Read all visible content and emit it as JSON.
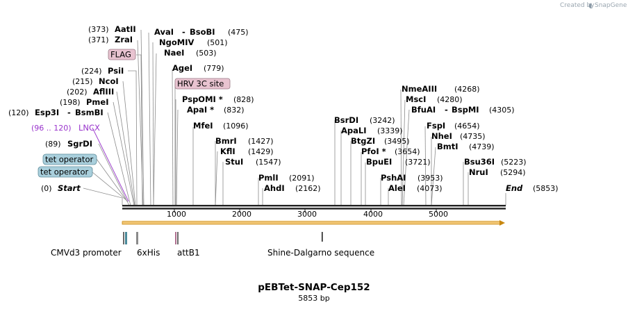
{
  "map": {
    "title": "pEBTet-SNAP-Cep152",
    "size_label": "5853 bp",
    "credit_prefix": "Created by",
    "credit_brand": "SnapGene"
  },
  "ticks": [
    {
      "label": "1000"
    },
    {
      "label": "2000"
    },
    {
      "label": "3000"
    },
    {
      "label": "4000"
    },
    {
      "label": "5000"
    }
  ],
  "terminals": {
    "start": {
      "label": "Start",
      "pos": "(0)"
    },
    "end": {
      "label": "End",
      "pos": "(5853)"
    }
  },
  "left_sites": [
    {
      "name": "AatII",
      "pos": "(373)"
    },
    {
      "name": "ZraI",
      "pos": "(371)"
    },
    {
      "name": "PsiI",
      "pos": "(224)"
    },
    {
      "name": "NcoI",
      "pos": "(215)"
    },
    {
      "name": "AflIII",
      "pos": "(202)"
    },
    {
      "name": "PmeI",
      "pos": "(198)"
    },
    {
      "name": "Esp3I",
      "name2": "BsmBI",
      "pos": "(120)"
    },
    {
      "name": "SgrDI",
      "pos": "(89)"
    }
  ],
  "right_sites": [
    {
      "name": "AvaI",
      "name2": "BsoBI",
      "pos": "(475)"
    },
    {
      "name": "NgoMIV",
      "pos": "(501)"
    },
    {
      "name": "NaeI",
      "pos": "(503)"
    },
    {
      "name": "AgeI",
      "pos": "(779)"
    },
    {
      "name": "PspOMI *",
      "pos": "(828)"
    },
    {
      "name": "ApaI *",
      "pos": "(832)"
    },
    {
      "name": "MfeI",
      "pos": "(1096)"
    },
    {
      "name": "BmrI",
      "pos": "(1427)"
    },
    {
      "name": "KflI",
      "pos": "(1429)"
    },
    {
      "name": "StuI",
      "pos": "(1547)"
    },
    {
      "name": "PmlI",
      "pos": "(2091)"
    },
    {
      "name": "AhdI",
      "pos": "(2162)"
    },
    {
      "name": "BsrDI",
      "pos": "(3242)"
    },
    {
      "name": "ApaLI",
      "pos": "(3339)"
    },
    {
      "name": "BtgZI",
      "pos": "(3495)"
    },
    {
      "name": "PfoI *",
      "pos": "(3654)"
    },
    {
      "name": "BpuEI",
      "pos": "(3721)"
    },
    {
      "name": "PshAI",
      "pos": "(3953)"
    },
    {
      "name": "AleI",
      "pos": "(4073)"
    },
    {
      "name": "NmeAIII",
      "pos": "(4268)"
    },
    {
      "name": "MscI",
      "pos": "(4280)"
    },
    {
      "name": "BfuAI",
      "name2": "BspMI",
      "pos": "(4305)"
    },
    {
      "name": "FspI",
      "pos": "(4654)"
    },
    {
      "name": "NheI",
      "pos": "(4735)"
    },
    {
      "name": "BmtI",
      "pos": "(4739)"
    },
    {
      "name": "Bsu36I",
      "pos": "(5223)"
    },
    {
      "name": "NruI",
      "pos": "(5294)"
    }
  ],
  "features_top": [
    {
      "label": "FLAG"
    },
    {
      "label": "HRV 3C site"
    },
    {
      "label": "LNCX",
      "range": "(96 .. 120)"
    },
    {
      "label": "tet operator"
    },
    {
      "label": "tet operator"
    }
  ],
  "features_bottom": [
    {
      "label": "CMVd3 promoter"
    },
    {
      "label": "6xHis"
    },
    {
      "label": "attB1"
    },
    {
      "label": "Shine-Dalgarno sequence"
    }
  ],
  "colors": {
    "pink_box": "#e8c3d0",
    "blue_box": "#a9cfdc",
    "lncx": "#9933cc",
    "orf_fill": "#f3c97a",
    "orf_stroke": "#c8870f"
  }
}
